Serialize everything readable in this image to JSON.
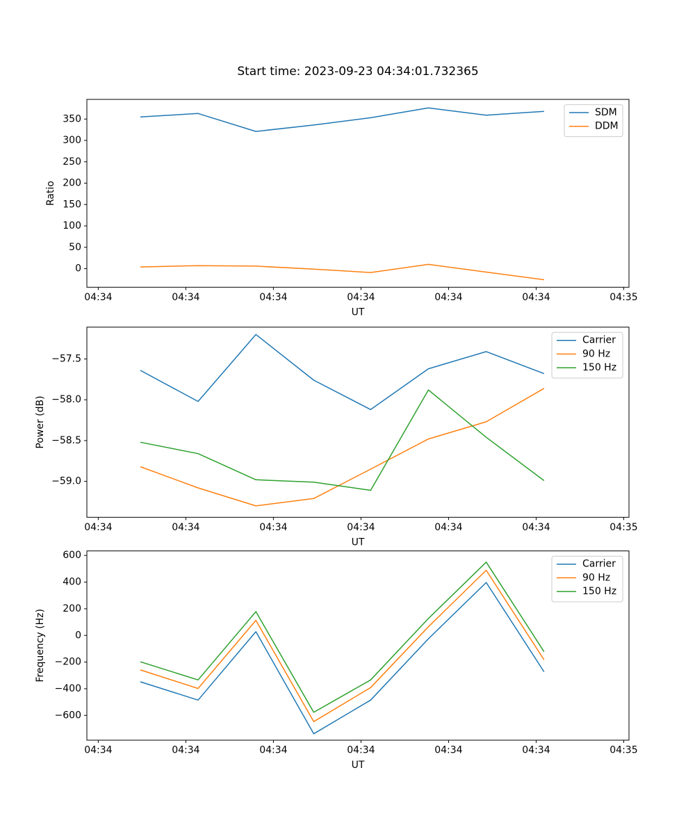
{
  "figure": {
    "title": "Start time: 2023-09-23 04:34:01.732365",
    "background": "#ffffff",
    "axis_color": "#000000",
    "legend_border_color": "#cccccc"
  },
  "chart_data": [
    {
      "type": "line",
      "title": "Start time: 2023-09-23 04:34:01.732365",
      "xlabel": "UT",
      "ylabel": "Ratio",
      "x_unit": "seconds after 04:34:00",
      "x": [
        4.8,
        11.4,
        18.0,
        24.6,
        31.1,
        37.7,
        44.3,
        50.9
      ],
      "xlim": [
        -1.3,
        60.6
      ],
      "ylim": [
        -43.5,
        396
      ],
      "grid": false,
      "legend_position": "upper right",
      "x_tick_positions": [
        0,
        10,
        20,
        30,
        40,
        50,
        60
      ],
      "x_tick_labels": [
        "04:34",
        "04:34",
        "04:34",
        "04:34",
        "04:34",
        "04:34",
        "04:35"
      ],
      "y_tick_values": [
        0,
        50,
        100,
        150,
        200,
        250,
        300,
        350
      ],
      "y_tick_labels": [
        "0",
        "50",
        "100",
        "150",
        "200",
        "250",
        "300",
        "350"
      ],
      "series": [
        {
          "name": "SDM",
          "color": "#1f77b4",
          "values": [
            355,
            363,
            321,
            336,
            353,
            376,
            359,
            368
          ]
        },
        {
          "name": "DDM",
          "color": "#ff7f0e",
          "values": [
            4,
            7,
            6,
            -1,
            -9,
            10,
            -8,
            -26
          ]
        }
      ]
    },
    {
      "type": "line",
      "title": "",
      "xlabel": "UT",
      "ylabel": "Power (dB)",
      "x_unit": "seconds after 04:34:00",
      "x": [
        4.8,
        11.4,
        18.0,
        24.6,
        31.1,
        37.7,
        44.3,
        50.9
      ],
      "xlim": [
        -1.3,
        60.6
      ],
      "ylim": [
        -59.44,
        -57.11
      ],
      "grid": false,
      "legend_position": "upper right",
      "x_tick_positions": [
        0,
        10,
        20,
        30,
        40,
        50,
        60
      ],
      "x_tick_labels": [
        "04:34",
        "04:34",
        "04:34",
        "04:34",
        "04:34",
        "04:34",
        "04:35"
      ],
      "y_tick_values": [
        -59.0,
        -58.5,
        -58.0,
        -57.5
      ],
      "y_tick_labels": [
        "−59.0",
        "−58.5",
        "−58.0",
        "−57.5"
      ],
      "series": [
        {
          "name": "Carrier",
          "color": "#1f77b4",
          "values": [
            -57.64,
            -58.02,
            -57.2,
            -57.76,
            -58.12,
            -57.62,
            -57.41,
            -57.68
          ]
        },
        {
          "name": "90 Hz",
          "color": "#ff7f0e",
          "values": [
            -58.82,
            -59.08,
            -59.3,
            -59.21,
            -58.85,
            -58.48,
            -58.27,
            -57.86
          ]
        },
        {
          "name": "150 Hz",
          "color": "#2ca02c",
          "values": [
            -58.52,
            -58.66,
            -58.98,
            -59.01,
            -59.11,
            -57.88,
            -58.46,
            -58.99
          ]
        }
      ]
    },
    {
      "type": "line",
      "title": "",
      "xlabel": "UT",
      "ylabel": "Frequency (Hz)",
      "x_unit": "seconds after 04:34:00",
      "x": [
        4.8,
        11.4,
        18.0,
        24.6,
        31.1,
        37.7,
        44.3,
        50.9
      ],
      "xlim": [
        -1.3,
        60.6
      ],
      "ylim": [
        -786,
        634
      ],
      "grid": false,
      "legend_position": "upper right",
      "x_tick_positions": [
        0,
        10,
        20,
        30,
        40,
        50,
        60
      ],
      "x_tick_labels": [
        "04:34",
        "04:34",
        "04:34",
        "04:34",
        "04:34",
        "04:34",
        "04:35"
      ],
      "y_tick_values": [
        -600,
        -400,
        -200,
        0,
        200,
        400,
        600
      ],
      "y_tick_labels": [
        "−600",
        "−400",
        "−200",
        "0",
        "200",
        "400",
        "600"
      ],
      "series": [
        {
          "name": "Carrier",
          "color": "#1f77b4",
          "values": [
            -348,
            -485,
            28,
            -738,
            -485,
            -25,
            397,
            -273
          ]
        },
        {
          "name": "90 Hz",
          "color": "#ff7f0e",
          "values": [
            -259,
            -398,
            113,
            -647,
            -391,
            65,
            489,
            -183
          ]
        },
        {
          "name": "150 Hz",
          "color": "#2ca02c",
          "values": [
            -198,
            -334,
            179,
            -577,
            -334,
            127,
            550,
            -122
          ]
        }
      ]
    }
  ]
}
